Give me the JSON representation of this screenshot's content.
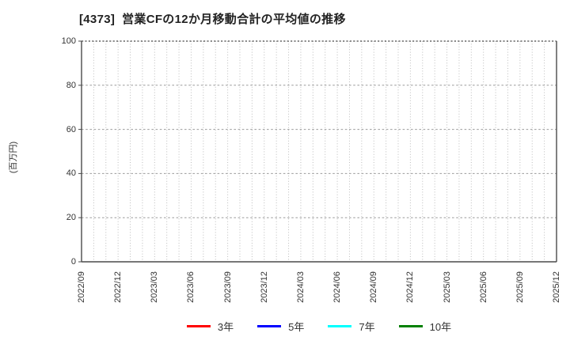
{
  "chart_data": {
    "type": "line",
    "title": "[4373]  営業CFの12か月移動合計の平均値の推移",
    "xlabel": "",
    "ylabel": "(百万円)",
    "ylim": [
      0,
      100
    ],
    "y_ticks": [
      0,
      20,
      40,
      60,
      80,
      100
    ],
    "x_tick_labels": [
      "2022/09",
      "2022/12",
      "2023/03",
      "2023/06",
      "2023/09",
      "2023/12",
      "2024/03",
      "2024/06",
      "2024/09",
      "2024/12",
      "2025/03",
      "2025/06",
      "2025/09",
      "2025/12"
    ],
    "x_minor_gridline_count": 40,
    "grid": true,
    "legend_position": "bottom",
    "series": [
      {
        "name": "3年",
        "color": "#ff0000",
        "values": []
      },
      {
        "name": "5年",
        "color": "#0000ff",
        "values": []
      },
      {
        "name": "7年",
        "color": "#00ffff",
        "values": []
      },
      {
        "name": "10年",
        "color": "#008000",
        "values": []
      }
    ],
    "colors": {
      "axis": "#4a4a4a",
      "grid_vertical": "#bcbcbc",
      "grid_horizontal": "#9c9c9c",
      "tick_text": "#333333",
      "title_text": "#222222"
    }
  }
}
